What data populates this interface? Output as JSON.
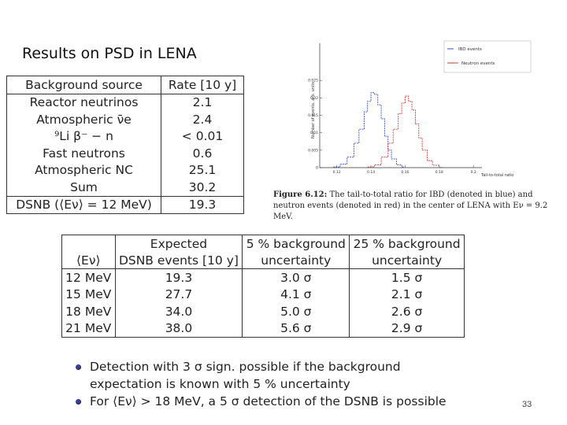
{
  "slide": {
    "title": "Results on PSD in LENA",
    "page_number": "33"
  },
  "background_table": {
    "headers": [
      "Background source",
      "Rate [10 y]"
    ],
    "rows": [
      [
        "Reactor neutrinos",
        "2.1"
      ],
      [
        "Atmospheric ν̄e",
        "2.4"
      ],
      [
        "⁹Li β⁻ − n",
        "< 0.01"
      ],
      [
        "Fast neutrons",
        "0.6"
      ],
      [
        "Atmospheric NC",
        "25.1"
      ],
      [
        "Sum",
        "30.2"
      ]
    ],
    "dsnb_row": [
      "DSNB (⟨Eν⟩ = 12 MeV)",
      "19.3"
    ]
  },
  "figure": {
    "legend": [
      "IBD events",
      "Neutron events"
    ],
    "ylabel": "Number of events, arb. units",
    "xlabel": "Tail-to-total ratio",
    "xticks": [
      "0.12",
      "0.14",
      "0.16",
      "0.18",
      "0.2"
    ],
    "yticks": [
      "0",
      "0.005",
      "0.01",
      "0.015",
      "0.02",
      "0.025"
    ],
    "colors": {
      "ibd": "#3a4fc7",
      "neutron": "#d23a3a"
    },
    "caption_label": "Figure 6.12:",
    "caption_text": "The tail-to-total ratio for IBD (denoted in blue) and neutron events (denoted in red) in the center of LENA with Eν = 9.2 MeV."
  },
  "chart_data": {
    "type": "line",
    "xlabel": "Tail-to-total ratio",
    "ylabel": "Number of events, arb. units",
    "xlim": [
      0.11,
      0.205
    ],
    "ylim": [
      0,
      0.03
    ],
    "series": [
      {
        "name": "IBD events",
        "x": [
          0.118,
          0.122,
          0.126,
          0.13,
          0.133,
          0.136,
          0.138,
          0.14,
          0.142,
          0.144,
          0.146,
          0.148,
          0.15,
          0.152,
          0.155,
          0.158
        ],
        "values": [
          0.0002,
          0.001,
          0.003,
          0.007,
          0.011,
          0.016,
          0.019,
          0.0215,
          0.021,
          0.018,
          0.014,
          0.009,
          0.005,
          0.0025,
          0.0008,
          0.0002
        ]
      },
      {
        "name": "Neutron events",
        "x": [
          0.138,
          0.142,
          0.146,
          0.15,
          0.153,
          0.156,
          0.158,
          0.16,
          0.162,
          0.164,
          0.166,
          0.168,
          0.17,
          0.173,
          0.176,
          0.18
        ],
        "values": [
          0.0002,
          0.0008,
          0.003,
          0.007,
          0.011,
          0.0155,
          0.0185,
          0.0205,
          0.019,
          0.0165,
          0.0125,
          0.0085,
          0.005,
          0.002,
          0.0007,
          0.0001
        ]
      }
    ]
  },
  "sensitivity_table": {
    "header_row1": [
      "",
      "Expected",
      "5 % background",
      "25 % background"
    ],
    "header_row2": [
      "⟨Eν⟩",
      "DSNB events [10 y]",
      "uncertainty",
      "uncertainty"
    ],
    "rows": [
      [
        "12 MeV",
        "19.3",
        "3.0 σ",
        "1.5 σ"
      ],
      [
        "15 MeV",
        "27.7",
        "4.1 σ",
        "2.1 σ"
      ],
      [
        "18 MeV",
        "34.0",
        "5.0 σ",
        "2.6 σ"
      ],
      [
        "21 MeV",
        "38.0",
        "5.6 σ",
        "2.9 σ"
      ]
    ]
  },
  "bullets": [
    {
      "line1": "Detection with 3 σ sign. possible if the background",
      "line2": "expectation is known with 5 % uncertainty"
    },
    {
      "line1": "For ⟨Eν⟩ > 18 MeV, a 5 σ detection of the DSNB is possible",
      "line2": ""
    }
  ]
}
